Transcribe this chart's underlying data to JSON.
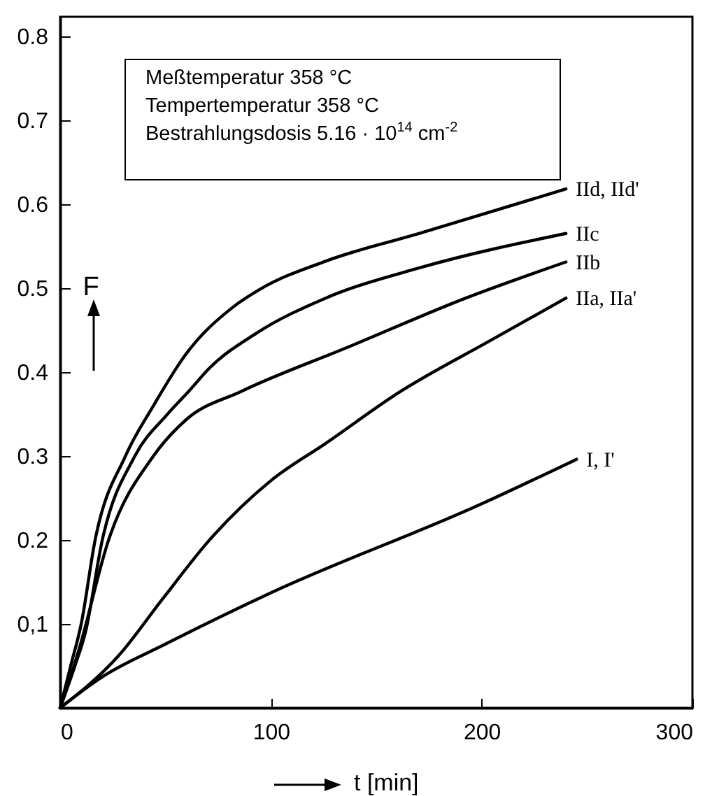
{
  "chart_data": {
    "type": "line",
    "xlabel": "t [min]",
    "ylabel": "F",
    "annotations": [
      "Meßtemperatur   358 °C",
      "Tempertemperatur   358 °C",
      "Bestrahlungsdosis   5.16 · 10$^{14}$ cm$^{-2}$"
    ],
    "xlim": [
      0,
      300
    ],
    "xticks": [
      0,
      100,
      200,
      300
    ],
    "ylim": [
      0,
      0.823
    ],
    "yticks": [
      {
        "value": 0.1,
        "label": "0,1"
      },
      0.2,
      0.3,
      0.4,
      0.5,
      0.6,
      0.7,
      0.8
    ],
    "series": [
      {
        "name": "IId, IId'",
        "color": "#000000",
        "x": [
          0,
          5,
          10,
          16.6,
          31,
          44.3,
          59.6,
          81.9,
          95.2,
          126,
          170.5,
          240
        ],
        "values": [
          0,
          0.05,
          0.1,
          0.2,
          0.3,
          0.36,
          0.421,
          0.477,
          0.499,
          0.532,
          0.565,
          0.618
        ]
      },
      {
        "name": "IIc",
        "color": "#000000",
        "x": [
          0,
          7,
          12,
          20,
          35.5,
          51,
          61,
          71,
          93,
          126,
          170.5,
          240
        ],
        "values": [
          0,
          0.05,
          0.09,
          0.2,
          0.3,
          0.35,
          0.377,
          0.405,
          0.446,
          0.488,
          0.524,
          0.565
        ]
      },
      {
        "name": "IIb",
        "color": "#000000",
        "x": [
          0,
          9,
          23,
          44.3,
          59.7,
          86,
          137,
          192.5,
          240
        ],
        "values": [
          0,
          0.07,
          0.2,
          0.3,
          0.343,
          0.377,
          0.43,
          0.488,
          0.531
        ]
      },
      {
        "name": "IIa, IIa'",
        "color": "#000000",
        "x": [
          0,
          27.7,
          48.7,
          70.9,
          99.7,
          126,
          161.6,
          203.8,
          240
        ],
        "values": [
          0,
          0.062,
          0.13,
          0.2,
          0.27,
          0.315,
          0.377,
          0.437,
          0.488
        ]
      },
      {
        "name": "I, I'",
        "color": "#000000",
        "x": [
          0,
          20,
          50,
          100,
          200,
          245
        ],
        "values": [
          0,
          0.037,
          0.076,
          0.137,
          0.243,
          0.296
        ]
      }
    ]
  }
}
